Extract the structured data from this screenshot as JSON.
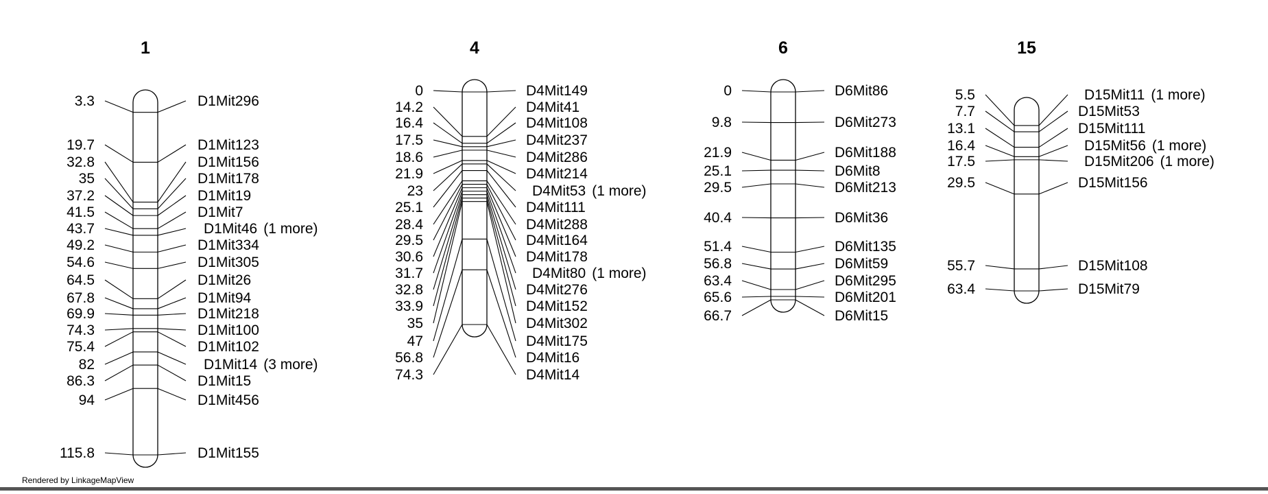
{
  "footer": "Rendered by LinkageMapView",
  "chromosomes": [
    {
      "name": "1",
      "markers": [
        {
          "pos": "3.3",
          "label": "D1Mit296"
        },
        {
          "pos": "19.7",
          "label": "D1Mit123"
        },
        {
          "pos": "32.8",
          "label": "D1Mit156"
        },
        {
          "pos": "35",
          "label": "D1Mit178"
        },
        {
          "pos": "37.2",
          "label": "D1Mit19"
        },
        {
          "pos": "41.5",
          "label": "D1Mit7"
        },
        {
          "pos": "43.7",
          "label": "D1Mit46",
          "extra": "(1 more)"
        },
        {
          "pos": "49.2",
          "label": "D1Mit334"
        },
        {
          "pos": "54.6",
          "label": "D1Mit305"
        },
        {
          "pos": "64.5",
          "label": "D1Mit26"
        },
        {
          "pos": "67.8",
          "label": "D1Mit94"
        },
        {
          "pos": "69.9",
          "label": "D1Mit218"
        },
        {
          "pos": "74.3",
          "label": "D1Mit100"
        },
        {
          "pos": "75.4",
          "label": "D1Mit102"
        },
        {
          "pos": "82",
          "label": "D1Mit14",
          "extra": "(3 more)"
        },
        {
          "pos": "86.3",
          "label": "D1Mit15"
        },
        {
          "pos": "94",
          "label": "D1Mit456"
        },
        {
          "pos": "115.8",
          "label": "D1Mit155"
        }
      ]
    },
    {
      "name": "4",
      "markers": [
        {
          "pos": "0",
          "label": "D4Mit149"
        },
        {
          "pos": "14.2",
          "label": "D4Mit41"
        },
        {
          "pos": "16.4",
          "label": "D4Mit108"
        },
        {
          "pos": "17.5",
          "label": "D4Mit237"
        },
        {
          "pos": "18.6",
          "label": "D4Mit286"
        },
        {
          "pos": "21.9",
          "label": "D4Mit214"
        },
        {
          "pos": "23",
          "label": "D4Mit53",
          "extra": "(1 more)"
        },
        {
          "pos": "25.1",
          "label": "D4Mit111"
        },
        {
          "pos": "28.4",
          "label": "D4Mit288"
        },
        {
          "pos": "29.5",
          "label": "D4Mit164"
        },
        {
          "pos": "30.6",
          "label": "D4Mit178"
        },
        {
          "pos": "31.7",
          "label": "D4Mit80",
          "extra": "(1 more)"
        },
        {
          "pos": "32.8",
          "label": "D4Mit276"
        },
        {
          "pos": "33.9",
          "label": "D4Mit152"
        },
        {
          "pos": "35",
          "label": "D4Mit302"
        },
        {
          "pos": "47",
          "label": "D4Mit175"
        },
        {
          "pos": "56.8",
          "label": "D4Mit16"
        },
        {
          "pos": "74.3",
          "label": "D4Mit14"
        }
      ]
    },
    {
      "name": "6",
      "markers": [
        {
          "pos": "0",
          "label": "D6Mit86"
        },
        {
          "pos": "9.8",
          "label": "D6Mit273"
        },
        {
          "pos": "21.9",
          "label": "D6Mit188"
        },
        {
          "pos": "25.1",
          "label": "D6Mit8"
        },
        {
          "pos": "29.5",
          "label": "D6Mit213"
        },
        {
          "pos": "40.4",
          "label": "D6Mit36"
        },
        {
          "pos": "51.4",
          "label": "D6Mit135"
        },
        {
          "pos": "56.8",
          "label": "D6Mit59"
        },
        {
          "pos": "63.4",
          "label": "D6Mit295"
        },
        {
          "pos": "65.6",
          "label": "D6Mit201"
        },
        {
          "pos": "66.7",
          "label": "D6Mit15"
        }
      ]
    },
    {
      "name": "15",
      "markers": [
        {
          "pos": "5.5",
          "label": "D15Mit11",
          "extra": "(1 more)"
        },
        {
          "pos": "7.7",
          "label": "D15Mit53"
        },
        {
          "pos": "13.1",
          "label": "D15Mit111"
        },
        {
          "pos": "16.4",
          "label": "D15Mit56",
          "extra": "(1 more)"
        },
        {
          "pos": "17.5",
          "label": "D15Mit206",
          "extra": "(1 more)"
        },
        {
          "pos": "29.5",
          "label": "D15Mit156"
        },
        {
          "pos": "55.7",
          "label": "D15Mit108"
        },
        {
          "pos": "63.4",
          "label": "D15Mit79"
        }
      ]
    }
  ]
}
